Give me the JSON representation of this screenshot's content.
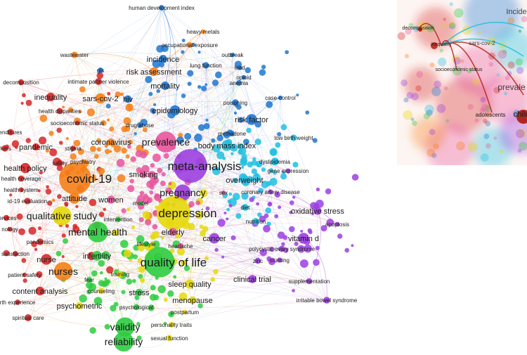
{
  "network_map": {
    "clusters": {
      "red": "#d62728",
      "orange": "#f57f17",
      "blue": "#1f77d0",
      "cyan": "#20bfe0",
      "purple": "#9c3fe0",
      "green": "#2ecc40",
      "yellow": "#e6d80a",
      "pink": "#e8559c"
    },
    "keywords": [
      {
        "id": "k_hdi",
        "label": "human development index",
        "cluster": "blue",
        "size": "small"
      },
      {
        "id": "k_heavy",
        "label": "heavy metals",
        "cluster": "orange",
        "size": "small"
      },
      {
        "id": "k_occ",
        "label": "occupational exposure",
        "cluster": "orange",
        "size": "small"
      },
      {
        "id": "k_waste",
        "label": "wastewater",
        "cluster": "orange",
        "size": "small"
      },
      {
        "id": "k_outbreak",
        "label": "outbreak",
        "cluster": "blue",
        "size": "small"
      },
      {
        "id": "k_incidence",
        "label": "incidence",
        "cluster": "blue",
        "size": "medium"
      },
      {
        "id": "k_lung",
        "label": "lung function",
        "cluster": "blue",
        "size": "small"
      },
      {
        "id": "k_lead",
        "label": "lead",
        "cluster": "blue",
        "size": "small"
      },
      {
        "id": "k_gis",
        "label": "gis",
        "cluster": "blue",
        "size": "small"
      },
      {
        "id": "k_risk",
        "label": "risk assessment",
        "cluster": "orange",
        "size": "medium"
      },
      {
        "id": "k_opioid",
        "label": "opioid",
        "cluster": "blue",
        "size": "small"
      },
      {
        "id": "k_ipv",
        "label": "intimate partner violence",
        "cluster": "red",
        "size": "small"
      },
      {
        "id": "k_anemia",
        "label": "anemia",
        "cluster": "blue",
        "size": "small"
      },
      {
        "id": "k_mortality",
        "label": "mortality",
        "cluster": "blue",
        "size": "medium"
      },
      {
        "id": "k_decomp",
        "label": "decomposition",
        "cluster": "red",
        "size": "small"
      },
      {
        "id": "k_case",
        "label": "case-control",
        "cluster": "blue",
        "size": "small"
      },
      {
        "id": "k_inequality",
        "label": "inequality",
        "cluster": "red",
        "size": "medium"
      },
      {
        "id": "k_sars",
        "label": "sars-cov-2",
        "cluster": "orange",
        "size": "medium"
      },
      {
        "id": "k_hiv",
        "label": "hiv",
        "cluster": "blue",
        "size": "medium"
      },
      {
        "id": "k_poison",
        "label": "poisoning",
        "cluster": "blue",
        "size": "small"
      },
      {
        "id": "k_disparities",
        "label": "health disparities",
        "cluster": "red",
        "size": "small"
      },
      {
        "id": "k_epi",
        "label": "epidemiology",
        "cluster": "blue",
        "size": "medium"
      },
      {
        "id": "k_ses",
        "label": "socioeconomic status",
        "cluster": "red",
        "size": "small"
      },
      {
        "id": "k_drug",
        "label": "drug abuse",
        "cluster": "blue",
        "size": "small"
      },
      {
        "id": "k_riskfactor",
        "label": "risk factor",
        "cluster": "blue",
        "size": "medium"
      },
      {
        "id": "k_expend",
        "label": "enditures",
        "cluster": "red",
        "size": "small"
      },
      {
        "id": "k_methadone",
        "label": "methadone",
        "cluster": "blue",
        "size": "small"
      },
      {
        "id": "k_corona",
        "label": "coronavirus",
        "cluster": "orange",
        "size": "medium"
      },
      {
        "id": "k_prev",
        "label": "prevalence",
        "cluster": "pink",
        "size": "large"
      },
      {
        "id": "k_bmi",
        "label": "body mass index",
        "cluster": "cyan",
        "size": "medium"
      },
      {
        "id": "k_lbw",
        "label": "low birth weight",
        "cluster": "cyan",
        "size": "small"
      },
      {
        "id": "k_workers",
        "label": "rkers",
        "cluster": "red",
        "size": "small"
      },
      {
        "id": "k_pandemic",
        "label": "pandemic",
        "cluster": "red",
        "size": "medium"
      },
      {
        "id": "k_stigma",
        "label": "stigma",
        "cluster": "red",
        "size": "small"
      },
      {
        "id": "k_psych",
        "label": "psychiatry",
        "cluster": "orange",
        "size": "small"
      },
      {
        "id": "k_dyslip",
        "label": "dyslipidemia",
        "cluster": "cyan",
        "size": "small"
      },
      {
        "id": "k_safety",
        "label": "safety",
        "cluster": "red",
        "size": "small"
      },
      {
        "id": "k_meta",
        "label": "meta-analysis",
        "cluster": "purple",
        "size": "xlarge"
      },
      {
        "id": "k_gene",
        "label": "gene expression",
        "cluster": "purple",
        "size": "small"
      },
      {
        "id": "k_hpolicy",
        "label": "health policy",
        "cluster": "red",
        "size": "medium"
      },
      {
        "id": "k_hcover",
        "label": "health coverage",
        "cluster": "red",
        "size": "small"
      },
      {
        "id": "k_smoking",
        "label": "smoking",
        "cluster": "pink",
        "size": "medium"
      },
      {
        "id": "k_covid",
        "label": "covid-19",
        "cluster": "orange",
        "size": "xlarge"
      },
      {
        "id": "k_hsystem",
        "label": "health system",
        "cluster": "red",
        "size": "small"
      },
      {
        "id": "k_preg",
        "label": "pregnancy",
        "cluster": "purple",
        "size": "large"
      },
      {
        "id": "k_sex",
        "label": "sex",
        "cluster": "pink",
        "size": "small"
      },
      {
        "id": "k_overweight",
        "label": "overweight",
        "cluster": "cyan",
        "size": "medium"
      },
      {
        "id": "k_cad",
        "label": "coronary artery disease",
        "cluster": "purple",
        "size": "small"
      },
      {
        "id": "k_attitude",
        "label": "attitude",
        "cluster": "orange",
        "size": "medium"
      },
      {
        "id": "k_women",
        "label": "women",
        "cluster": "pink",
        "size": "medium"
      },
      {
        "id": "k_evaluation",
        "label": "id-19 evaluation",
        "cluster": "red",
        "size": "small"
      },
      {
        "id": "k_model",
        "label": "model",
        "cluster": "green",
        "size": "small"
      },
      {
        "id": "k_diet",
        "label": "diet",
        "cluster": "cyan",
        "size": "small"
      },
      {
        "id": "k_depression",
        "label": "depression",
        "cluster": "yellow",
        "size": "xlarge"
      },
      {
        "id": "k_oxstress",
        "label": "oxidative stress",
        "cluster": "purple",
        "size": "medium"
      },
      {
        "id": "k_qual",
        "label": "qualitative study",
        "cluster": "yellow",
        "size": "large"
      },
      {
        "id": "k_services",
        "label": "services",
        "cluster": "red",
        "size": "small"
      },
      {
        "id": "k_intervention",
        "label": "intervention",
        "cluster": "green",
        "size": "small"
      },
      {
        "id": "k_nutrition",
        "label": "nutrition",
        "cluster": "cyan",
        "size": "small"
      },
      {
        "id": "k_apoptosis",
        "label": "apoptosis",
        "cluster": "purple",
        "size": "small"
      },
      {
        "id": "k_nology",
        "label": "nology",
        "cluster": "red",
        "size": "small"
      },
      {
        "id": "k_mhealth",
        "label": "mental health",
        "cluster": "green",
        "size": "large"
      },
      {
        "id": "k_elderly",
        "label": "elderly",
        "cluster": "pink",
        "size": "medium"
      },
      {
        "id": "k_cancer",
        "label": "cancer",
        "cluster": "purple",
        "size": "medium"
      },
      {
        "id": "k_vitd",
        "label": "vitamin d",
        "cluster": "purple",
        "size": "medium"
      },
      {
        "id": "k_pandemics",
        "label": "pandemics",
        "cluster": "red",
        "size": "small"
      },
      {
        "id": "k_lifestyle",
        "label": "lifestyle",
        "cluster": "green",
        "size": "small"
      },
      {
        "id": "k_headache",
        "label": "headache",
        "cluster": "pink",
        "size": "small"
      },
      {
        "id": "k_pcos",
        "label": "polycystic ovary syndrome",
        "cluster": "purple",
        "size": "small"
      },
      {
        "id": "k_satisfaction",
        "label": "satisfaction",
        "cluster": "red",
        "size": "small"
      },
      {
        "id": "k_nurse",
        "label": "nurse",
        "cluster": "red",
        "size": "medium"
      },
      {
        "id": "k_infertility",
        "label": "infertility",
        "cluster": "green",
        "size": "medium"
      },
      {
        "id": "k_qol",
        "label": "quality of life",
        "cluster": "green",
        "size": "xlarge"
      },
      {
        "id": "k_zinc",
        "label": "zinc",
        "cluster": "purple",
        "size": "small"
      },
      {
        "id": "k_stunting",
        "label": "stunting",
        "cluster": "purple",
        "size": "small"
      },
      {
        "id": "k_psafety",
        "label": "patient safety",
        "cluster": "red",
        "size": "small"
      },
      {
        "id": "k_nurses",
        "label": "nurses",
        "cluster": "orange",
        "size": "large"
      },
      {
        "id": "k_training",
        "label": "training",
        "cluster": "yellow",
        "size": "small"
      },
      {
        "id": "k_fear",
        "label": "fear",
        "cluster": "green",
        "size": "small"
      },
      {
        "id": "k_clinical",
        "label": "clinical trial",
        "cluster": "purple",
        "size": "medium"
      },
      {
        "id": "k_sleep",
        "label": "sleep quality",
        "cluster": "yellow",
        "size": "medium"
      },
      {
        "id": "k_supplement",
        "label": "supplementation",
        "cluster": "purple",
        "size": "small"
      },
      {
        "id": "k_content",
        "label": "content analysis",
        "cluster": "red",
        "size": "medium"
      },
      {
        "id": "k_counseling",
        "label": "counseling",
        "cluster": "yellow",
        "size": "small"
      },
      {
        "id": "k_stress",
        "label": "stress",
        "cluster": "green",
        "size": "medium"
      },
      {
        "id": "k_menopause",
        "label": "menopause",
        "cluster": "yellow",
        "size": "medium"
      },
      {
        "id": "k_birthexp",
        "label": "rth experience",
        "cluster": "red",
        "size": "small"
      },
      {
        "id": "k_psychometric",
        "label": "psychometric",
        "cluster": "yellow",
        "size": "medium"
      },
      {
        "id": "k_psychological",
        "label": "psychological",
        "cluster": "green",
        "size": "small"
      },
      {
        "id": "k_postpartum",
        "label": "postpartum",
        "cluster": "yellow",
        "size": "small"
      },
      {
        "id": "k_ibs",
        "label": "irritable bowel syndrome",
        "cluster": "purple",
        "size": "small"
      },
      {
        "id": "k_spiritual",
        "label": "spiritual care",
        "cluster": "red",
        "size": "small"
      },
      {
        "id": "k_validity",
        "label": "validity",
        "cluster": "green",
        "size": "large"
      },
      {
        "id": "k_personality",
        "label": "personality traits",
        "cluster": "yellow",
        "size": "small"
      },
      {
        "id": "k_reliability",
        "label": "reliability",
        "cluster": "green",
        "size": "large"
      },
      {
        "id": "k_sexual",
        "label": "sexual function",
        "cluster": "yellow",
        "size": "small"
      }
    ],
    "inset": {
      "labels": [
        {
          "id": "i_decomp",
          "label": "decomposition",
          "cluster": "red"
        },
        {
          "id": "i_inequality",
          "label": "inequality",
          "cluster": "red"
        },
        {
          "id": "i_sars",
          "label": "sars-cov-2",
          "cluster": "orange"
        },
        {
          "id": "i_ses",
          "label": "socioeconomic status",
          "cluster": "red"
        },
        {
          "id": "i_adolescents",
          "label": "adolescents",
          "cluster": "orange"
        },
        {
          "id": "i_incide",
          "label": "Incide",
          "cluster": "blue"
        },
        {
          "id": "i_prevale",
          "label": "prevale",
          "cluster": "pink"
        },
        {
          "id": "i_child",
          "label": "child",
          "cluster": "red"
        }
      ]
    }
  }
}
